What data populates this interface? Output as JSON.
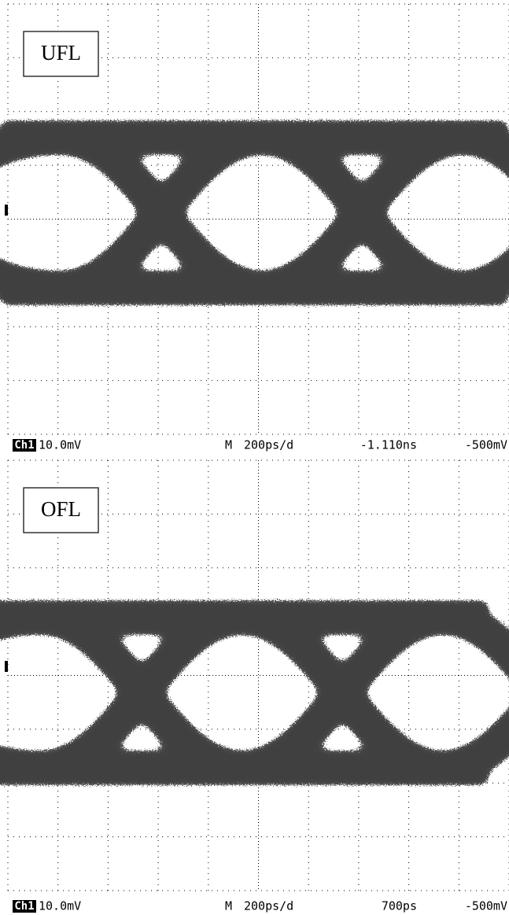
{
  "panels": [
    {
      "label": "UFL",
      "status": {
        "channel": "Ch1",
        "scale": "10.0mV",
        "mode": "M",
        "timebase": "200ps/d",
        "position": "-1.110ns",
        "trigger": "-500mV"
      }
    },
    {
      "label": "OFL",
      "status": {
        "channel": "Ch1",
        "scale": "10.0mV",
        "mode": "M",
        "timebase": "200ps/d",
        "position": "700ps",
        "trigger": "-500mV"
      }
    }
  ]
}
